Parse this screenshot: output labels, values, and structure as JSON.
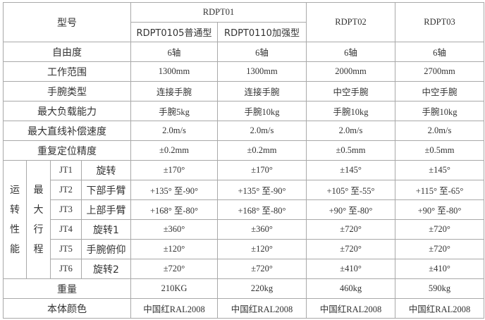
{
  "header": {
    "model_label": "型号",
    "group_rdpt01": "RDPT01",
    "sub_models": [
      "RDPT0105普通型",
      "RDPT0110加强型"
    ],
    "rdpt02": "RDPT02",
    "rdpt03": "RDPT03"
  },
  "specs": [
    {
      "label": "自由度",
      "values": [
        "6轴",
        "6轴",
        "6轴",
        "6轴"
      ]
    },
    {
      "label": "工作范围",
      "values": [
        "1300mm",
        "1300mm",
        "2000mm",
        "2700mm"
      ]
    },
    {
      "label": "手腕类型",
      "values": [
        "连接手腕",
        "连接手腕",
        "中空手腕",
        "中空手腕"
      ]
    },
    {
      "label": "最大负载能力",
      "values": [
        "手腕5kg",
        "手腕10kg",
        "手腕10kg",
        "手腕10kg"
      ]
    },
    {
      "label": "最大直线补偿速度",
      "values": [
        "2.0m/s",
        "2.0m/s",
        "2.0m/s",
        "2.0m/s"
      ]
    },
    {
      "label": "重复定位精度",
      "values": [
        "±0.2mm",
        "±0.2mm",
        "±0.5mm",
        "±0.5mm"
      ]
    }
  ],
  "motion": {
    "group_label": [
      "运",
      "转",
      "性",
      "能"
    ],
    "sub_label": [
      "最",
      "大",
      "行",
      "程"
    ],
    "axes": [
      {
        "axis": "JT1",
        "name": "旋转",
        "values": [
          "±170°",
          "±170°",
          "±145°",
          "±145°"
        ]
      },
      {
        "axis": "JT2",
        "name": "下部手臂",
        "values": [
          "+135° 至-90°",
          "+135° 至-90°",
          "+105° 至-55°",
          "+115° 至-65°"
        ]
      },
      {
        "axis": "JT3",
        "name": "上部手臂",
        "values": [
          "+168° 至-80°",
          "+168° 至-80°",
          "+90° 至-80°",
          "+90° 至-80°"
        ]
      },
      {
        "axis": "JT4",
        "name": "旋转1",
        "values": [
          "±360°",
          "±360°",
          "±720°",
          "±720°"
        ]
      },
      {
        "axis": "JT5",
        "name": "手腕俯仰",
        "values": [
          "±120°",
          "±120°",
          "±720°",
          "±720°"
        ]
      },
      {
        "axis": "JT6",
        "name": "旋转2",
        "values": [
          "±720°",
          "±720°",
          "±410°",
          "±410°"
        ]
      }
    ]
  },
  "footer": [
    {
      "label": "重量",
      "values": [
        "210KG",
        "220kg",
        "460kg",
        "590kg"
      ]
    },
    {
      "label": "本体颜色",
      "values": [
        "中国红RAL2008",
        "中国红RAL2008",
        "中国红RAL2008",
        "中国红RAL2008"
      ]
    }
  ]
}
